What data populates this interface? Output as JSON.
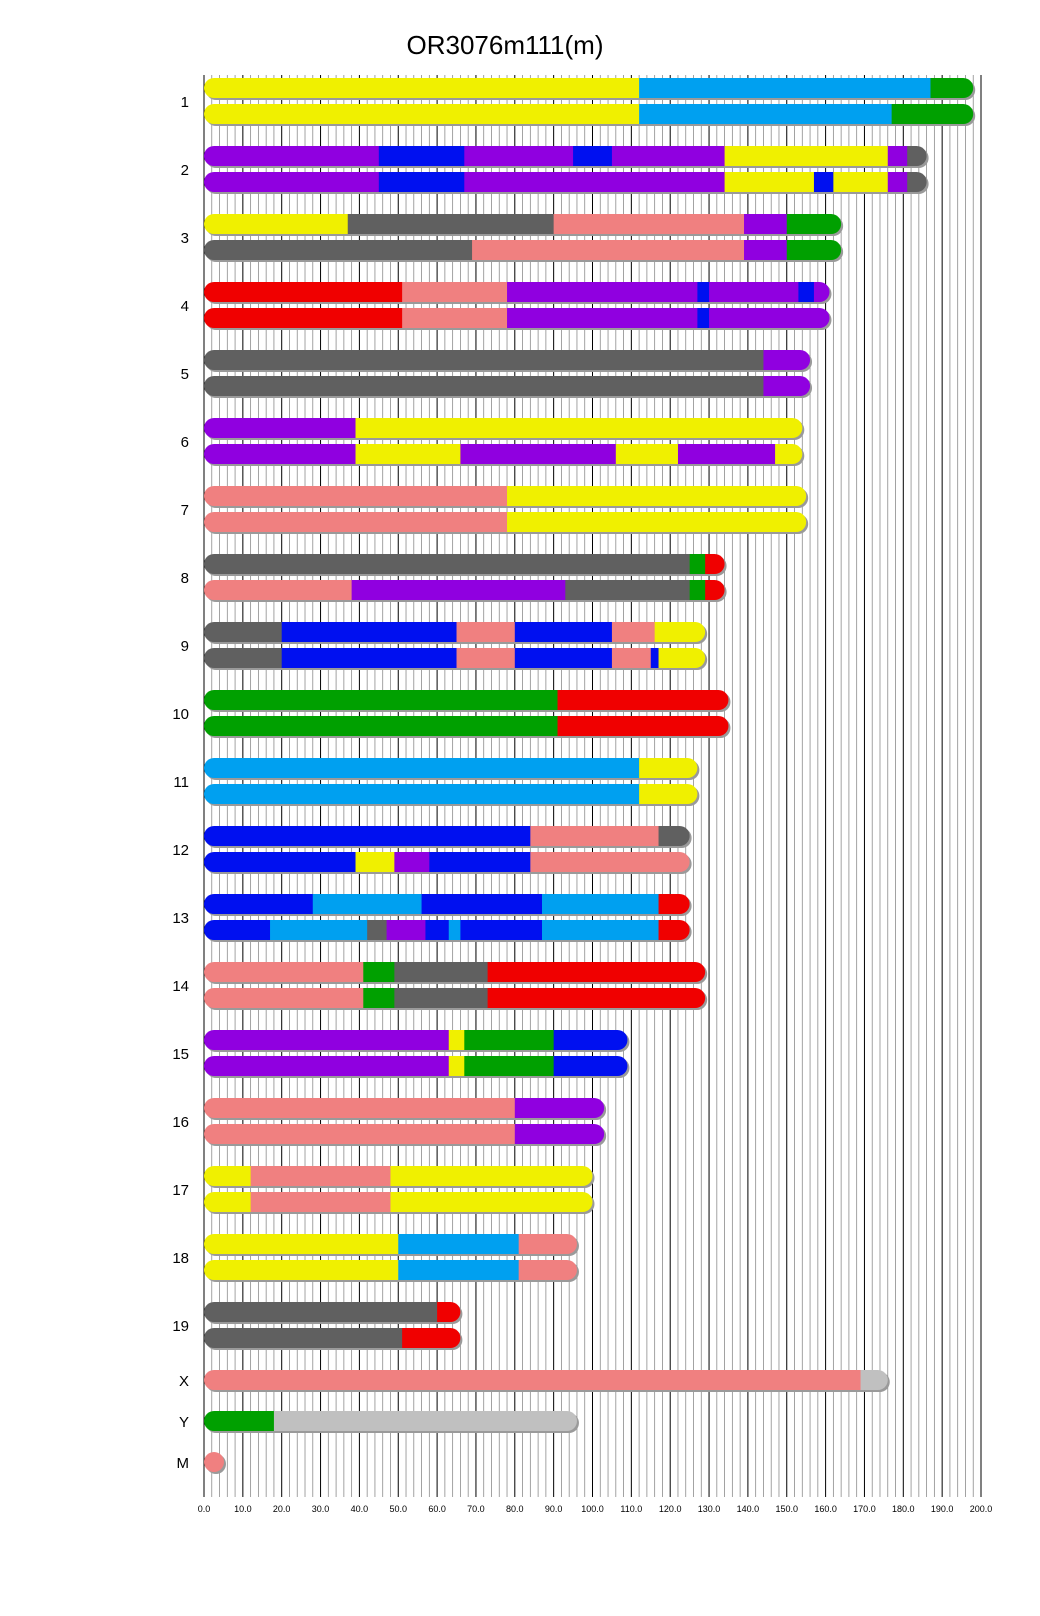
{
  "chart_data": {
    "type": "bar",
    "title": "OR3076m111(m)",
    "xlim": [
      0,
      200
    ],
    "x_ticks": [
      "0.0",
      "10.0",
      "20.0",
      "30.0",
      "40.0",
      "50.0",
      "60.0",
      "70.0",
      "80.0",
      "90.0",
      "100.0",
      "110.0",
      "120.0",
      "130.0",
      "140.0",
      "150.0",
      "160.0",
      "170.0",
      "180.0",
      "190.0",
      "200.0"
    ],
    "grid": "vertical",
    "colors": {
      "yellow": "#f0f000",
      "lightblue": "#00a0f0",
      "green": "#00a000",
      "purple": "#9000e0",
      "blue": "#0010f0",
      "darkgray": "#606060",
      "salmon": "#f08080",
      "red": "#f00000",
      "lightgray": "#c0c0c0"
    },
    "chromosomes": [
      {
        "label": "1",
        "haplotypes": [
          [
            [
              0,
              112,
              "yellow"
            ],
            [
              112,
              187,
              "lightblue"
            ],
            [
              187,
              198,
              "green"
            ]
          ],
          [
            [
              0,
              112,
              "yellow"
            ],
            [
              112,
              177,
              "lightblue"
            ],
            [
              177,
              198,
              "green"
            ]
          ]
        ]
      },
      {
        "label": "2",
        "haplotypes": [
          [
            [
              0,
              45,
              "purple"
            ],
            [
              45,
              67,
              "blue"
            ],
            [
              67,
              95,
              "purple"
            ],
            [
              95,
              105,
              "blue"
            ],
            [
              105,
              134,
              "purple"
            ],
            [
              134,
              176,
              "yellow"
            ],
            [
              176,
              181,
              "purple"
            ],
            [
              181,
              186,
              "darkgray"
            ]
          ],
          [
            [
              0,
              45,
              "purple"
            ],
            [
              45,
              67,
              "blue"
            ],
            [
              67,
              134,
              "purple"
            ],
            [
              134,
              157,
              "yellow"
            ],
            [
              157,
              162,
              "blue"
            ],
            [
              162,
              176,
              "yellow"
            ],
            [
              176,
              181,
              "purple"
            ],
            [
              181,
              186,
              "darkgray"
            ]
          ]
        ]
      },
      {
        "label": "3",
        "haplotypes": [
          [
            [
              0,
              37,
              "yellow"
            ],
            [
              37,
              90,
              "darkgray"
            ],
            [
              90,
              139,
              "salmon"
            ],
            [
              139,
              150,
              "purple"
            ],
            [
              150,
              164,
              "green"
            ]
          ],
          [
            [
              0,
              69,
              "darkgray"
            ],
            [
              69,
              139,
              "salmon"
            ],
            [
              139,
              150,
              "purple"
            ],
            [
              150,
              164,
              "green"
            ]
          ]
        ]
      },
      {
        "label": "4",
        "haplotypes": [
          [
            [
              0,
              51,
              "red"
            ],
            [
              51,
              78,
              "salmon"
            ],
            [
              78,
              127,
              "purple"
            ],
            [
              127,
              130,
              "blue"
            ],
            [
              130,
              153,
              "purple"
            ],
            [
              153,
              157,
              "blue"
            ],
            [
              157,
              161,
              "purple"
            ]
          ],
          [
            [
              0,
              51,
              "red"
            ],
            [
              51,
              78,
              "salmon"
            ],
            [
              78,
              127,
              "purple"
            ],
            [
              127,
              130,
              "blue"
            ],
            [
              130,
              161,
              "purple"
            ]
          ]
        ]
      },
      {
        "label": "5",
        "haplotypes": [
          [
            [
              0,
              144,
              "darkgray"
            ],
            [
              144,
              156,
              "purple"
            ]
          ],
          [
            [
              0,
              144,
              "darkgray"
            ],
            [
              144,
              156,
              "purple"
            ]
          ]
        ]
      },
      {
        "label": "6",
        "haplotypes": [
          [
            [
              0,
              39,
              "purple"
            ],
            [
              39,
              154,
              "yellow"
            ]
          ],
          [
            [
              0,
              39,
              "purple"
            ],
            [
              39,
              66,
              "yellow"
            ],
            [
              66,
              106,
              "purple"
            ],
            [
              106,
              122,
              "yellow"
            ],
            [
              122,
              147,
              "purple"
            ],
            [
              147,
              154,
              "yellow"
            ]
          ]
        ]
      },
      {
        "label": "7",
        "haplotypes": [
          [
            [
              0,
              78,
              "salmon"
            ],
            [
              78,
              155,
              "yellow"
            ]
          ],
          [
            [
              0,
              78,
              "salmon"
            ],
            [
              78,
              155,
              "yellow"
            ]
          ]
        ]
      },
      {
        "label": "8",
        "haplotypes": [
          [
            [
              0,
              125,
              "darkgray"
            ],
            [
              125,
              129,
              "green"
            ],
            [
              129,
              134,
              "red"
            ]
          ],
          [
            [
              0,
              38,
              "salmon"
            ],
            [
              38,
              93,
              "purple"
            ],
            [
              93,
              125,
              "darkgray"
            ],
            [
              125,
              129,
              "green"
            ],
            [
              129,
              134,
              "red"
            ]
          ]
        ]
      },
      {
        "label": "9",
        "haplotypes": [
          [
            [
              0,
              20,
              "darkgray"
            ],
            [
              20,
              65,
              "blue"
            ],
            [
              65,
              80,
              "salmon"
            ],
            [
              80,
              105,
              "blue"
            ],
            [
              105,
              116,
              "salmon"
            ],
            [
              116,
              129,
              "yellow"
            ]
          ],
          [
            [
              0,
              20,
              "darkgray"
            ],
            [
              20,
              65,
              "blue"
            ],
            [
              65,
              80,
              "salmon"
            ],
            [
              80,
              105,
              "blue"
            ],
            [
              105,
              115,
              "salmon"
            ],
            [
              115,
              117,
              "blue"
            ],
            [
              117,
              129,
              "yellow"
            ]
          ]
        ]
      },
      {
        "label": "10",
        "haplotypes": [
          [
            [
              0,
              91,
              "green"
            ],
            [
              91,
              135,
              "red"
            ]
          ],
          [
            [
              0,
              91,
              "green"
            ],
            [
              91,
              135,
              "red"
            ]
          ]
        ]
      },
      {
        "label": "11",
        "haplotypes": [
          [
            [
              0,
              112,
              "lightblue"
            ],
            [
              112,
              127,
              "yellow"
            ]
          ],
          [
            [
              0,
              112,
              "lightblue"
            ],
            [
              112,
              127,
              "yellow"
            ]
          ]
        ]
      },
      {
        "label": "12",
        "haplotypes": [
          [
            [
              0,
              84,
              "blue"
            ],
            [
              84,
              117,
              "salmon"
            ],
            [
              117,
              125,
              "darkgray"
            ]
          ],
          [
            [
              0,
              39,
              "blue"
            ],
            [
              39,
              49,
              "yellow"
            ],
            [
              49,
              58,
              "purple"
            ],
            [
              58,
              84,
              "blue"
            ],
            [
              84,
              125,
              "salmon"
            ]
          ]
        ]
      },
      {
        "label": "13",
        "haplotypes": [
          [
            [
              0,
              28,
              "blue"
            ],
            [
              28,
              56,
              "lightblue"
            ],
            [
              56,
              87,
              "blue"
            ],
            [
              87,
              117,
              "lightblue"
            ],
            [
              117,
              125,
              "red"
            ]
          ],
          [
            [
              0,
              17,
              "blue"
            ],
            [
              17,
              42,
              "lightblue"
            ],
            [
              42,
              47,
              "darkgray"
            ],
            [
              47,
              57,
              "purple"
            ],
            [
              57,
              63,
              "blue"
            ],
            [
              63,
              66,
              "lightblue"
            ],
            [
              66,
              87,
              "blue"
            ],
            [
              87,
              117,
              "lightblue"
            ],
            [
              117,
              125,
              "red"
            ]
          ]
        ]
      },
      {
        "label": "14",
        "haplotypes": [
          [
            [
              0,
              41,
              "salmon"
            ],
            [
              41,
              49,
              "green"
            ],
            [
              49,
              73,
              "darkgray"
            ],
            [
              73,
              129,
              "red"
            ]
          ],
          [
            [
              0,
              41,
              "salmon"
            ],
            [
              41,
              49,
              "green"
            ],
            [
              49,
              73,
              "darkgray"
            ],
            [
              73,
              129,
              "red"
            ]
          ]
        ]
      },
      {
        "label": "15",
        "haplotypes": [
          [
            [
              0,
              63,
              "purple"
            ],
            [
              63,
              67,
              "yellow"
            ],
            [
              67,
              90,
              "green"
            ],
            [
              90,
              109,
              "blue"
            ]
          ],
          [
            [
              0,
              63,
              "purple"
            ],
            [
              63,
              67,
              "yellow"
            ],
            [
              67,
              90,
              "green"
            ],
            [
              90,
              109,
              "blue"
            ]
          ]
        ]
      },
      {
        "label": "16",
        "haplotypes": [
          [
            [
              0,
              80,
              "salmon"
            ],
            [
              80,
              103,
              "purple"
            ]
          ],
          [
            [
              0,
              80,
              "salmon"
            ],
            [
              80,
              103,
              "purple"
            ]
          ]
        ]
      },
      {
        "label": "17",
        "haplotypes": [
          [
            [
              0,
              12,
              "yellow"
            ],
            [
              12,
              48,
              "salmon"
            ],
            [
              48,
              100,
              "yellow"
            ]
          ],
          [
            [
              0,
              12,
              "yellow"
            ],
            [
              12,
              48,
              "salmon"
            ],
            [
              48,
              100,
              "yellow"
            ]
          ]
        ]
      },
      {
        "label": "18",
        "haplotypes": [
          [
            [
              0,
              50,
              "yellow"
            ],
            [
              50,
              81,
              "lightblue"
            ],
            [
              81,
              96,
              "salmon"
            ]
          ],
          [
            [
              0,
              50,
              "yellow"
            ],
            [
              50,
              81,
              "lightblue"
            ],
            [
              81,
              96,
              "salmon"
            ]
          ]
        ]
      },
      {
        "label": "19",
        "haplotypes": [
          [
            [
              0,
              60,
              "darkgray"
            ],
            [
              60,
              66,
              "red"
            ]
          ],
          [
            [
              0,
              51,
              "darkgray"
            ],
            [
              51,
              66,
              "red"
            ]
          ]
        ]
      },
      {
        "label": "X",
        "haplotypes": [
          [
            [
              0,
              169,
              "salmon"
            ],
            [
              169,
              176,
              "lightgray"
            ]
          ]
        ]
      },
      {
        "label": "Y",
        "haplotypes": [
          [
            [
              0,
              18,
              "green"
            ],
            [
              18,
              96,
              "lightgray"
            ]
          ]
        ]
      },
      {
        "label": "M",
        "haplotypes": [
          [
            [
              0,
              3,
              "salmon"
            ]
          ]
        ]
      }
    ]
  }
}
